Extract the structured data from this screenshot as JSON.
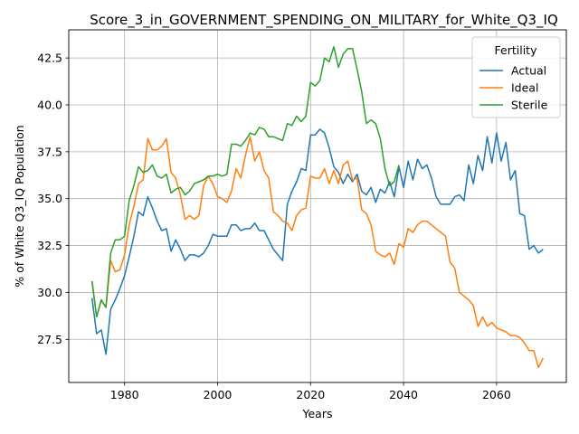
{
  "chart_data": {
    "type": "line",
    "title": "Score_3_in_GOVERNMENT_SPENDING_ON_MILITARY_for_White_Q3_IQ",
    "xlabel": "Years",
    "ylabel": "% of White Q3_IQ Population",
    "xlim": [
      1968,
      2075
    ],
    "ylim": [
      25.2,
      44.0
    ],
    "xticks": [
      1980,
      2000,
      2020,
      2040,
      2060
    ],
    "yticks": [
      27.5,
      30.0,
      32.5,
      35.0,
      37.5,
      40.0,
      42.5
    ],
    "grid": true,
    "legend": {
      "title": "Fertility",
      "position": "top-right"
    },
    "series": [
      {
        "name": "Actual",
        "color": "#1f77b4",
        "x": [
          1973,
          1974,
          1975,
          1976,
          1977,
          1978,
          1979,
          1980,
          1981,
          1982,
          1983,
          1984,
          1985,
          1986,
          1987,
          1988,
          1989,
          1990,
          1991,
          1992,
          1993,
          1994,
          1995,
          1996,
          1997,
          1998,
          1999,
          2000,
          2001,
          2002,
          2003,
          2004,
          2005,
          2006,
          2007,
          2008,
          2009,
          2010,
          2011,
          2012,
          2013,
          2014,
          2015,
          2016,
          2017,
          2018,
          2019,
          2020,
          2021,
          2022,
          2023,
          2024,
          2025,
          2026,
          2027,
          2028,
          2029,
          2030,
          2031,
          2032,
          2033,
          2034,
          2035,
          2036,
          2037,
          2038,
          2039,
          2040,
          2041,
          2042,
          2043,
          2044,
          2045,
          2046,
          2047,
          2048,
          2049,
          2050,
          2051,
          2052,
          2053,
          2054,
          2055,
          2056,
          2057,
          2058,
          2059,
          2060,
          2061,
          2062,
          2063,
          2064,
          2065,
          2066,
          2067,
          2068,
          2069,
          2070
        ],
        "y": [
          29.7,
          27.8,
          28.0,
          26.7,
          29.1,
          29.6,
          30.2,
          30.9,
          31.9,
          33.0,
          34.3,
          34.1,
          35.1,
          34.5,
          33.8,
          33.3,
          33.4,
          32.2,
          32.8,
          32.3,
          31.7,
          32.0,
          32.0,
          31.9,
          32.1,
          32.5,
          33.1,
          33.0,
          33.0,
          33.0,
          33.6,
          33.6,
          33.3,
          33.4,
          33.4,
          33.7,
          33.3,
          33.3,
          32.8,
          32.3,
          32.0,
          31.7,
          34.7,
          35.4,
          35.9,
          36.6,
          36.5,
          38.4,
          38.4,
          38.7,
          38.5,
          37.7,
          36.7,
          36.4,
          35.8,
          36.3,
          35.9,
          36.3,
          35.4,
          35.2,
          35.6,
          34.8,
          35.5,
          35.3,
          35.9,
          35.1,
          36.7,
          35.6,
          37.0,
          36.0,
          37.1,
          36.6,
          36.8,
          36.1,
          35.1,
          34.7,
          34.7,
          34.7,
          35.1,
          35.2,
          34.9,
          36.8,
          35.8,
          37.3,
          36.5,
          38.3,
          36.9,
          38.5,
          37.0,
          38.0,
          36.0,
          36.5,
          34.2,
          34.1,
          32.3,
          32.5,
          32.1,
          32.3
        ]
      },
      {
        "name": "Ideal",
        "color": "#ff7f0e",
        "x": [
          1973,
          1974,
          1975,
          1976,
          1977,
          1978,
          1979,
          1980,
          1981,
          1982,
          1983,
          1984,
          1985,
          1986,
          1987,
          1988,
          1989,
          1990,
          1991,
          1992,
          1993,
          1994,
          1995,
          1996,
          1997,
          1998,
          1999,
          2000,
          2001,
          2002,
          2003,
          2004,
          2005,
          2006,
          2007,
          2008,
          2009,
          2010,
          2011,
          2012,
          2013,
          2014,
          2015,
          2016,
          2017,
          2018,
          2019,
          2020,
          2021,
          2022,
          2023,
          2024,
          2025,
          2026,
          2027,
          2028,
          2029,
          2030,
          2031,
          2032,
          2033,
          2034,
          2035,
          2036,
          2037,
          2038,
          2039,
          2040,
          2041,
          2042,
          2043,
          2044,
          2045,
          2046,
          2047,
          2048,
          2049,
          2050,
          2051,
          2052,
          2053,
          2054,
          2055,
          2056,
          2057,
          2058,
          2059,
          2060,
          2061,
          2062,
          2063,
          2064,
          2065,
          2066,
          2067,
          2068,
          2069,
          2070
        ],
        "y": [
          30.6,
          28.7,
          29.6,
          29.2,
          31.7,
          31.1,
          31.2,
          32.0,
          33.6,
          34.6,
          35.8,
          36.0,
          38.2,
          37.6,
          37.6,
          37.8,
          38.2,
          36.4,
          36.1,
          35.2,
          33.9,
          34.1,
          33.9,
          34.1,
          35.7,
          36.2,
          35.8,
          35.1,
          35.0,
          34.8,
          35.4,
          36.6,
          36.1,
          37.3,
          38.3,
          37.0,
          37.5,
          36.5,
          36.1,
          34.3,
          34.1,
          33.8,
          33.7,
          33.3,
          34.1,
          34.4,
          34.5,
          36.2,
          36.1,
          36.1,
          36.6,
          35.8,
          36.5,
          35.8,
          36.8,
          37.0,
          36.0,
          36.1,
          34.4,
          34.2,
          33.6,
          32.2,
          32.0,
          31.9,
          32.1,
          31.5,
          32.6,
          32.4,
          33.4,
          33.2,
          33.6,
          33.8,
          33.8,
          33.6,
          33.4,
          33.2,
          33.0,
          31.6,
          31.3,
          30.0,
          29.8,
          29.6,
          29.3,
          28.2,
          28.7,
          28.2,
          28.4,
          28.1,
          28.0,
          27.9,
          27.7,
          27.7,
          27.6,
          27.3,
          26.9,
          26.9,
          26.0,
          26.5
        ]
      },
      {
        "name": "Sterile",
        "color": "#2ca02c",
        "x": [
          1973,
          1974,
          1975,
          1976,
          1977,
          1978,
          1979,
          1980,
          1981,
          1982,
          1983,
          1984,
          1985,
          1986,
          1987,
          1988,
          1989,
          1990,
          1991,
          1992,
          1993,
          1994,
          1995,
          1996,
          1997,
          1998,
          1999,
          2000,
          2001,
          2002,
          2003,
          2004,
          2005,
          2006,
          2007,
          2008,
          2009,
          2010,
          2011,
          2012,
          2013,
          2014,
          2015,
          2016,
          2017,
          2018,
          2019,
          2020,
          2021,
          2022,
          2023,
          2024,
          2025,
          2026,
          2027,
          2028,
          2029,
          2030,
          2031,
          2032,
          2033,
          2034,
          2035,
          2036,
          2037,
          2038,
          2039
        ],
        "y": [
          30.6,
          28.7,
          29.6,
          29.2,
          32.1,
          32.8,
          32.8,
          33.0,
          34.9,
          35.7,
          36.7,
          36.4,
          36.5,
          36.8,
          36.2,
          36.1,
          36.3,
          35.3,
          35.5,
          35.6,
          35.2,
          35.4,
          35.8,
          35.9,
          36.0,
          36.2,
          36.2,
          36.3,
          36.2,
          36.3,
          37.9,
          37.9,
          37.8,
          38.1,
          38.5,
          38.4,
          38.8,
          38.7,
          38.3,
          38.3,
          38.2,
          38.1,
          39.0,
          38.9,
          39.4,
          39.1,
          39.4,
          41.2,
          41.0,
          41.3,
          42.5,
          42.3,
          43.1,
          42.0,
          42.7,
          43.0,
          43.0,
          41.9,
          40.7,
          39.0,
          39.2,
          39.0,
          38.2,
          36.6,
          35.7,
          35.9,
          36.8
        ]
      }
    ]
  }
}
